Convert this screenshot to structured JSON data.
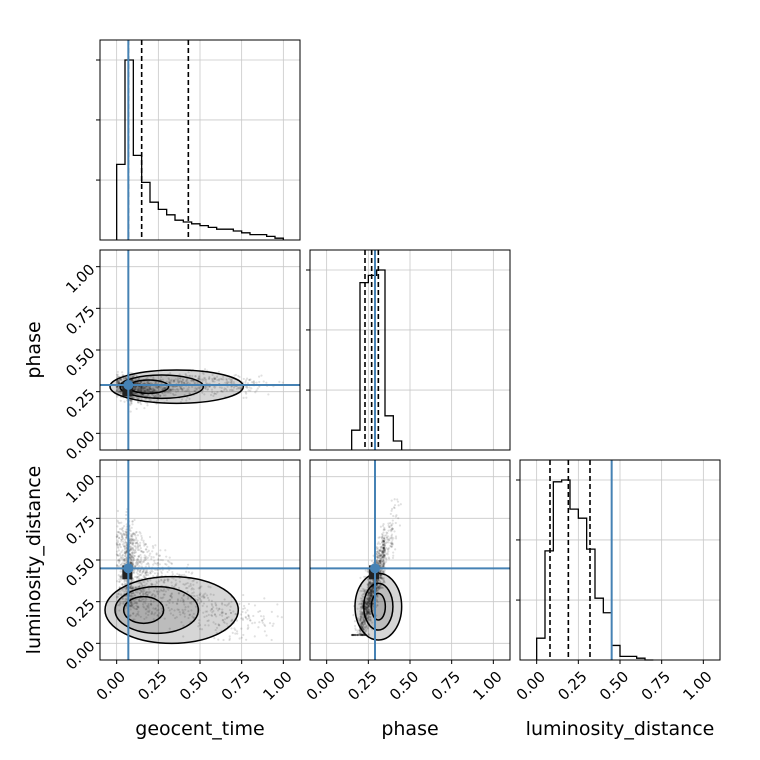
{
  "chart_data": {
    "type": "corner",
    "parameters": [
      "geocent_time",
      "phase",
      "luminosity_distance"
    ],
    "axis_range": [
      -0.1,
      1.1
    ],
    "tick_labels": [
      "0.00",
      "0.25",
      "0.50",
      "0.75",
      "1.00"
    ],
    "tick_values": [
      0,
      0.25,
      0.5,
      0.75,
      1.0
    ],
    "truths": {
      "geocent_time": 0.07,
      "phase": 0.29,
      "luminosity_distance": 0.45
    },
    "truth_color": "#4682b4",
    "quantiles": {
      "geocent_time": [
        0.07,
        0.15,
        0.43
      ],
      "phase": [
        0.23,
        0.27,
        0.31
      ],
      "luminosity_distance": [
        0.08,
        0.19,
        0.32
      ]
    },
    "histograms": {
      "geocent_time": {
        "bin_edges": [
          0.0,
          0.05,
          0.1,
          0.15,
          0.2,
          0.25,
          0.3,
          0.35,
          0.4,
          0.45,
          0.5,
          0.55,
          0.6,
          0.65,
          0.7,
          0.75,
          0.8,
          0.85,
          0.9,
          0.95,
          1.0
        ],
        "counts": [
          0.42,
          1.0,
          0.47,
          0.32,
          0.21,
          0.17,
          0.14,
          0.11,
          0.1,
          0.09,
          0.08,
          0.07,
          0.06,
          0.06,
          0.05,
          0.04,
          0.03,
          0.03,
          0.02,
          0.01
        ]
      },
      "phase": {
        "bin_edges": [
          0.15,
          0.2,
          0.25,
          0.3,
          0.35,
          0.4,
          0.45
        ],
        "counts": [
          0.11,
          0.93,
          0.97,
          1.0,
          0.19,
          0.05
        ]
      },
      "luminosity_distance": {
        "bin_edges": [
          0.0,
          0.05,
          0.1,
          0.15,
          0.2,
          0.25,
          0.3,
          0.35,
          0.4,
          0.45,
          0.5,
          0.55,
          0.6,
          0.65,
          0.7
        ],
        "counts": [
          0.12,
          0.6,
          0.98,
          0.99,
          0.83,
          0.78,
          0.61,
          0.34,
          0.26,
          0.08,
          0.02,
          0.02,
          0.01,
          0.0
        ]
      }
    },
    "grid": true
  }
}
